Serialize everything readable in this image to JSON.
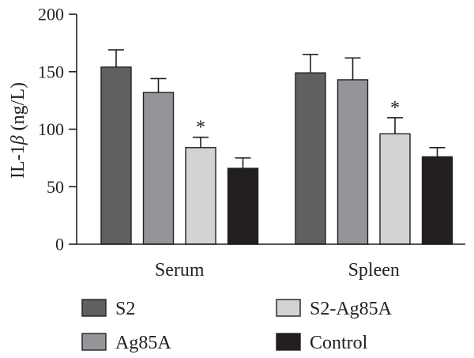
{
  "chart_data": {
    "type": "bar",
    "title": "",
    "xlabel": "",
    "ylabel": "IL-1β (ng/L)",
    "ylabel_prefix": "IL-1",
    "ylabel_symbol": "β",
    "ylabel_suffix": " (ng/L)",
    "ylim": [
      0,
      200
    ],
    "yticks": [
      "0",
      "50",
      "100",
      "150",
      "200"
    ],
    "categories": [
      "Serum",
      "Spleen"
    ],
    "legend_position": "bottom",
    "grid": false,
    "series": [
      {
        "name": "S2",
        "color": "#5f6062",
        "values": [
          154,
          149
        ],
        "errors": [
          15,
          16
        ],
        "annotations": [
          "",
          ""
        ]
      },
      {
        "name": "Ag85A",
        "color": "#939598",
        "values": [
          132,
          143
        ],
        "errors": [
          12,
          19
        ],
        "annotations": [
          "",
          ""
        ]
      },
      {
        "name": "S2-Ag85A",
        "color": "#d1d3d4",
        "values": [
          84,
          96
        ],
        "errors": [
          9,
          14
        ],
        "annotations": [
          "*",
          "*"
        ]
      },
      {
        "name": "Control",
        "color": "#231f20",
        "values": [
          66,
          76
        ],
        "errors": [
          9,
          8
        ],
        "annotations": [
          "",
          ""
        ]
      }
    ]
  }
}
